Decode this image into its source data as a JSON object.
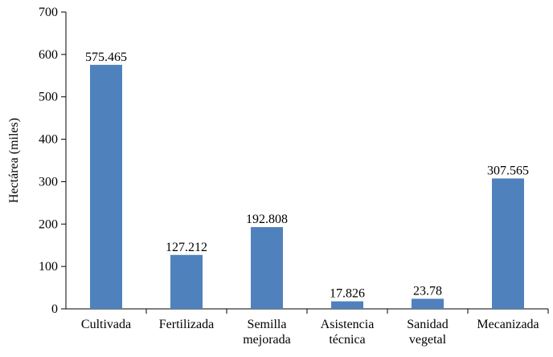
{
  "chart_data": {
    "type": "bar",
    "y_label": "Hectárea (miles)",
    "categories": [
      "Cultivada",
      "Fertilizada",
      "Semilla mejorada",
      "Asistencia técnica",
      "Sanidad vegetal",
      "Mecanizada"
    ],
    "values": [
      575.465,
      127.212,
      192.808,
      17.826,
      23.78,
      307.565
    ],
    "color": "#4f81bd",
    "ylim": [
      0,
      700
    ],
    "yticks": [
      0,
      100,
      200,
      300,
      400,
      500,
      600,
      700
    ],
    "grid": false
  }
}
